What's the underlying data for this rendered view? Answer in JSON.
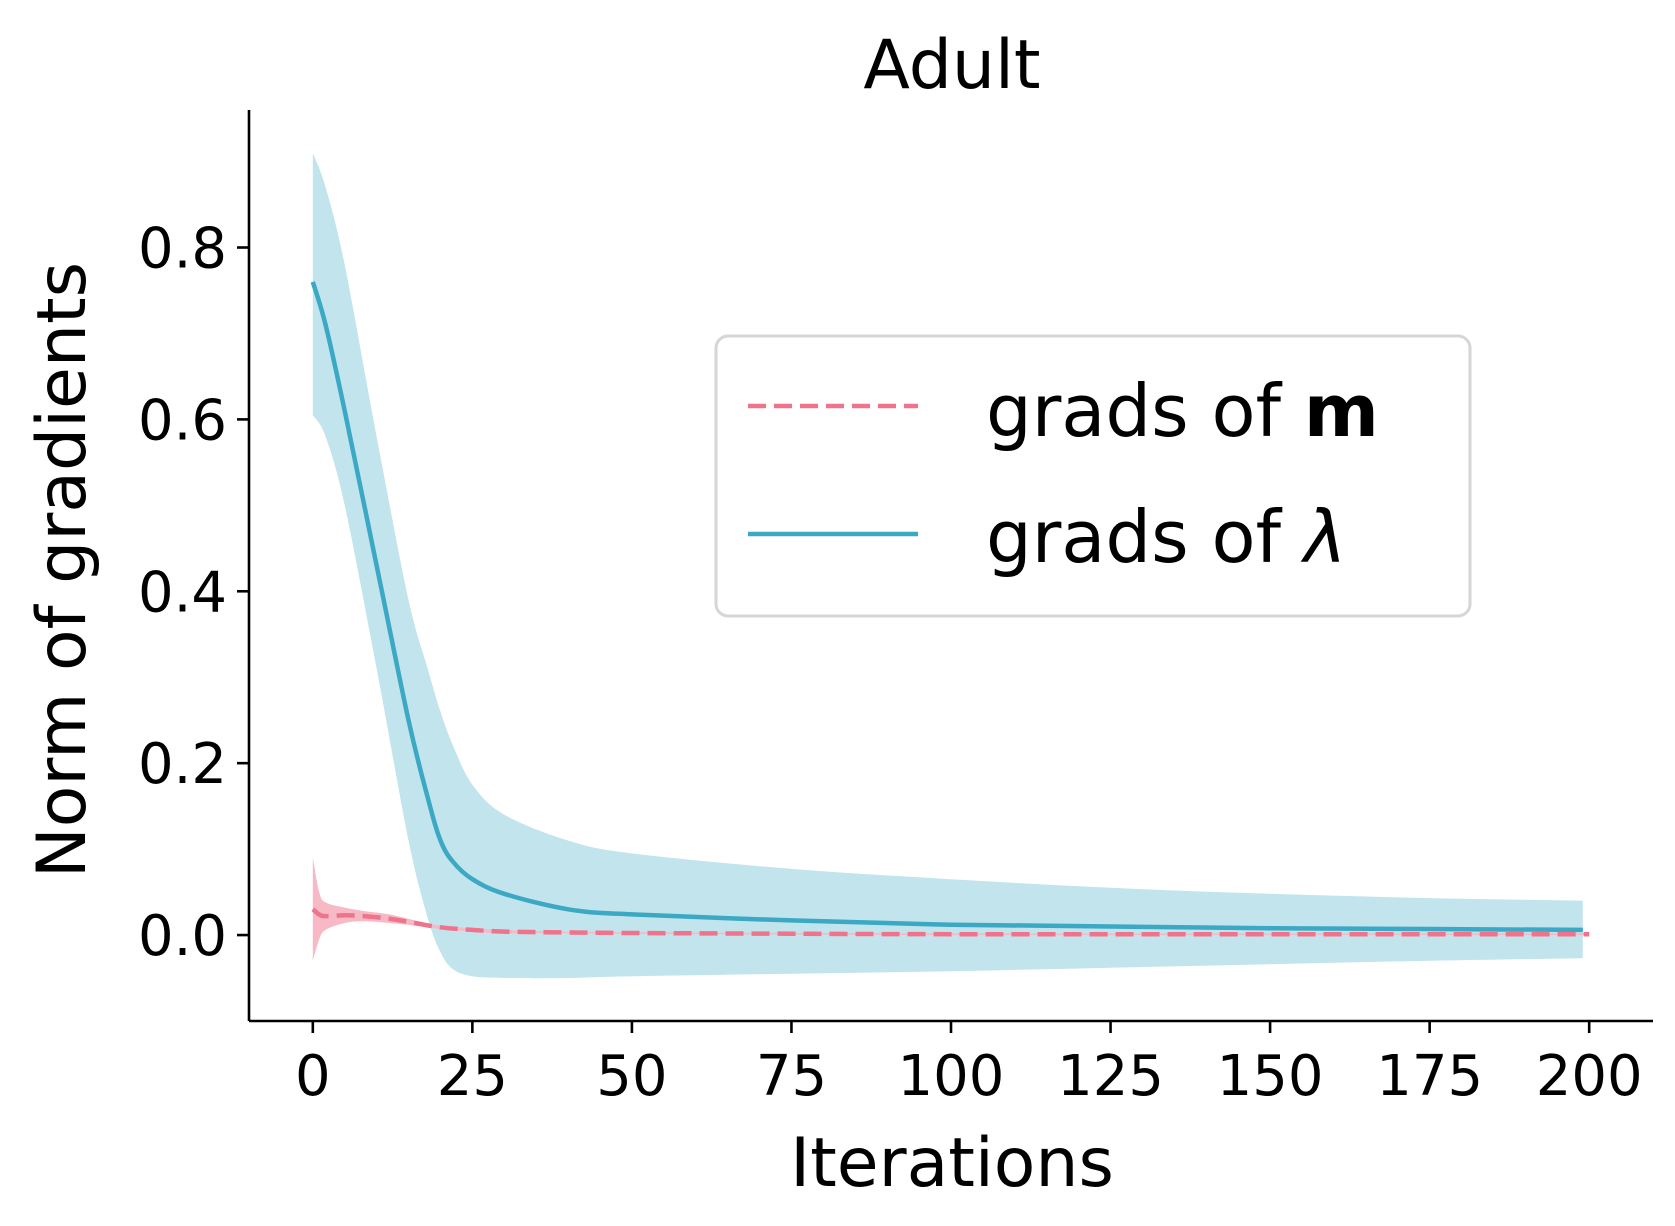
{
  "chart_data": {
    "type": "line",
    "title": "Adult",
    "xlabel": "Iterations",
    "ylabel": "Norm of gradients",
    "xlim": [
      -10,
      210
    ],
    "ylim": [
      -0.1,
      0.96
    ],
    "xticks": [
      0,
      25,
      50,
      75,
      100,
      125,
      150,
      175,
      200
    ],
    "xtick_labels": [
      "0",
      "25",
      "50",
      "75",
      "100",
      "125",
      "150",
      "175",
      "200"
    ],
    "yticks": [
      0.0,
      0.2,
      0.4,
      0.6,
      0.8
    ],
    "ytick_labels": [
      "0.0",
      "0.2",
      "0.4",
      "0.6",
      "0.8"
    ],
    "legend_position": "center-right",
    "series": [
      {
        "name": "grads of m",
        "legend_prefix": "grads of ",
        "legend_symbol": "m",
        "style": "dashed",
        "color": "#ef738a",
        "band_color": "#f7b9c6",
        "x": [
          0,
          1,
          2,
          5,
          8,
          12,
          16,
          20,
          25,
          30,
          40,
          60,
          100,
          150,
          200
        ],
        "y": [
          0.03,
          0.024,
          0.022,
          0.023,
          0.022,
          0.019,
          0.014,
          0.009,
          0.006,
          0.004,
          0.003,
          0.002,
          0.001,
          0.001,
          0.001
        ],
        "upper": [
          0.09,
          0.05,
          0.038,
          0.032,
          0.028,
          0.024,
          0.017,
          0.011,
          0.008,
          0.006,
          0.004,
          0.003,
          0.002,
          0.002,
          0.002
        ],
        "lower": [
          -0.03,
          -0.005,
          0.006,
          0.014,
          0.016,
          0.014,
          0.011,
          0.007,
          0.004,
          0.002,
          0.002,
          0.001,
          0.0,
          0.0,
          0.0
        ]
      },
      {
        "name": "grads of λ",
        "legend_prefix": "grads of ",
        "legend_symbol": "λ",
        "style": "solid",
        "color": "#3ba8c4",
        "band_color": "#c2e4ec",
        "x": [
          0,
          2,
          5,
          10,
          15,
          18,
          20,
          22,
          25,
          30,
          40,
          50,
          75,
          100,
          125,
          150,
          175,
          199
        ],
        "y": [
          0.76,
          0.71,
          0.61,
          0.43,
          0.25,
          0.16,
          0.11,
          0.085,
          0.065,
          0.048,
          0.03,
          0.024,
          0.017,
          0.012,
          0.01,
          0.008,
          0.007,
          0.006
        ],
        "upper": [
          0.91,
          0.87,
          0.78,
          0.58,
          0.39,
          0.31,
          0.26,
          0.22,
          0.175,
          0.14,
          0.11,
          0.095,
          0.077,
          0.065,
          0.055,
          0.048,
          0.043,
          0.04
        ],
        "lower": [
          0.605,
          0.58,
          0.5,
          0.31,
          0.11,
          0.02,
          -0.02,
          -0.04,
          -0.048,
          -0.05,
          -0.05,
          -0.048,
          -0.045,
          -0.042,
          -0.038,
          -0.034,
          -0.03,
          -0.027
        ]
      }
    ]
  }
}
